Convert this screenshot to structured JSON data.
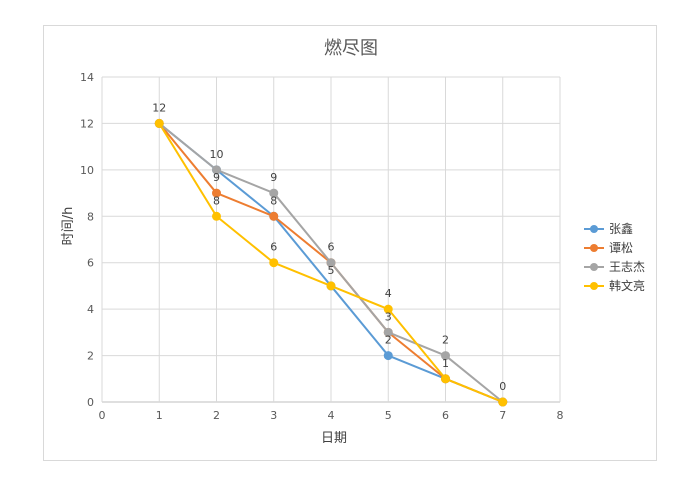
{
  "chart_data": {
    "type": "line",
    "title": "燃尽图",
    "xlabel": "日期",
    "ylabel": "时间/h",
    "x": [
      1,
      2,
      3,
      4,
      5,
      6,
      7
    ],
    "xlim": [
      0,
      8
    ],
    "ylim": [
      0,
      14
    ],
    "xticks": [
      0,
      1,
      2,
      3,
      4,
      5,
      6,
      7,
      8
    ],
    "yticks": [
      0,
      2,
      4,
      6,
      8,
      10,
      12,
      14
    ],
    "grid": true,
    "legend_position": "right",
    "series": [
      {
        "name": "张鑫",
        "color": "#5b9bd5",
        "values": [
          12,
          10,
          8,
          5,
          2,
          1,
          0
        ]
      },
      {
        "name": "谭松",
        "color": "#ed7d31",
        "values": [
          12,
          9,
          8,
          6,
          3,
          1,
          0
        ]
      },
      {
        "name": "王志杰",
        "color": "#a5a5a5",
        "values": [
          12,
          10,
          9,
          6,
          3,
          2,
          0
        ]
      },
      {
        "name": "韩文亮",
        "color": "#ffc000",
        "values": [
          12,
          8,
          6,
          5,
          4,
          1,
          0
        ]
      }
    ],
    "data_labels": [
      {
        "x": 1,
        "y": 12,
        "text": "12"
      },
      {
        "x": 2,
        "y": 10,
        "text": "10"
      },
      {
        "x": 2,
        "y": 9,
        "text": "9"
      },
      {
        "x": 2,
        "y": 8,
        "text": "8"
      },
      {
        "x": 3,
        "y": 9,
        "text": "9"
      },
      {
        "x": 3,
        "y": 8,
        "text": "8"
      },
      {
        "x": 3,
        "y": 6,
        "text": "6"
      },
      {
        "x": 4,
        "y": 6,
        "text": "6"
      },
      {
        "x": 4,
        "y": 5,
        "text": "5"
      },
      {
        "x": 5,
        "y": 4,
        "text": "4"
      },
      {
        "x": 5,
        "y": 3,
        "text": "3"
      },
      {
        "x": 5,
        "y": 2,
        "text": "2"
      },
      {
        "x": 6,
        "y": 2,
        "text": "2"
      },
      {
        "x": 6,
        "y": 1,
        "text": "1"
      },
      {
        "x": 7,
        "y": 0,
        "text": "0"
      }
    ]
  }
}
